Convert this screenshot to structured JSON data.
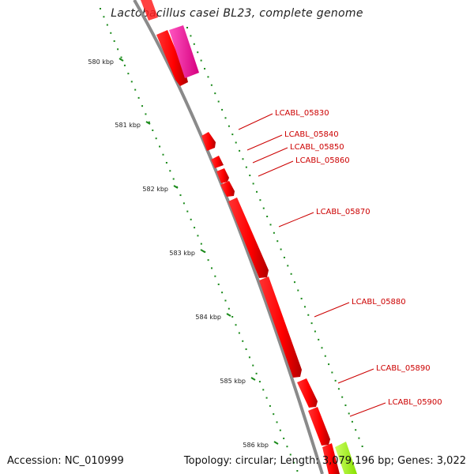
{
  "title": "Lactobacillus casei BL23, complete genome",
  "accession_text": "Accession: NC_010999",
  "summary_text": "Topology: circular; Length: 3,079,196 bp; Genes: 3,022",
  "kbp_ticks": [
    "580 kbp",
    "581 kbp",
    "582 kbp",
    "583 kbp",
    "584 kbp",
    "585 kbp",
    "586 kbp"
  ],
  "gene_labels": [
    "LCABL_05830",
    "LCABL_05840",
    "LCABL_05850",
    "LCABL_05860",
    "LCABL_05870",
    "LCABL_05880",
    "LCABL_05890",
    "LCABL_05900"
  ],
  "colors": {
    "backbone": "#8a8a8a",
    "gene_cds": "#ff0000",
    "gene_cds_dark": "#cc0000",
    "gene_magenta": "#ff1aa6",
    "gene_green": "#a6ff33",
    "gc_dots": "#1a8a1a",
    "label_text": "#cc0000"
  }
}
